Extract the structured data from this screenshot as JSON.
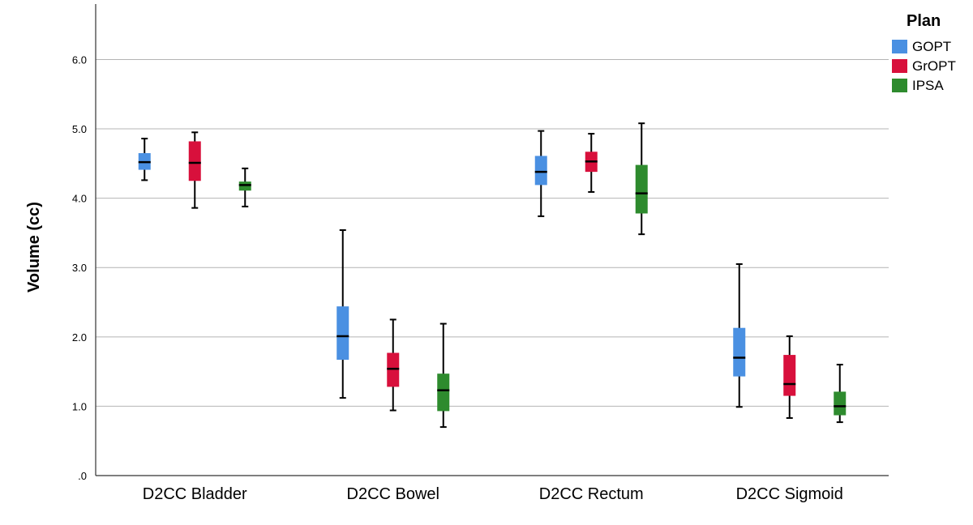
{
  "chart_data": {
    "type": "boxplot",
    "ylabel": "Volume (cc)",
    "xlabel": "",
    "ylim": [
      0,
      6.8
    ],
    "yticks": [
      {
        "value": 0,
        "label": ".0"
      },
      {
        "value": 1,
        "label": "1.0"
      },
      {
        "value": 2,
        "label": "2.0"
      },
      {
        "value": 3,
        "label": "3.0"
      },
      {
        "value": 4,
        "label": "4.0"
      },
      {
        "value": 5,
        "label": "5.0"
      },
      {
        "value": 6,
        "label": "6.0"
      }
    ],
    "grid": true,
    "legend": {
      "title": "Plan",
      "position": "top-right"
    },
    "categories": [
      "D2CC Bladder",
      "D2CC Bowel",
      "D2CC Rectum",
      "D2CC Sigmoid"
    ],
    "series": [
      {
        "name": "GOPT",
        "color": "#4a90e2",
        "boxes": [
          {
            "min": 4.26,
            "q1": 4.41,
            "median": 4.52,
            "q3": 4.65,
            "max": 4.86
          },
          {
            "min": 1.12,
            "q1": 1.67,
            "median": 2.01,
            "q3": 2.44,
            "max": 3.54
          },
          {
            "min": 3.74,
            "q1": 4.19,
            "median": 4.38,
            "q3": 4.61,
            "max": 4.97
          },
          {
            "min": 0.99,
            "q1": 1.43,
            "median": 1.7,
            "q3": 2.13,
            "max": 3.05
          }
        ]
      },
      {
        "name": "GrOPT",
        "color": "#d8103c",
        "boxes": [
          {
            "min": 3.86,
            "q1": 4.25,
            "median": 4.51,
            "q3": 4.82,
            "max": 4.95
          },
          {
            "min": 0.94,
            "q1": 1.28,
            "median": 1.54,
            "q3": 1.77,
            "max": 2.25
          },
          {
            "min": 4.09,
            "q1": 4.38,
            "median": 4.53,
            "q3": 4.67,
            "max": 4.93
          },
          {
            "min": 0.83,
            "q1": 1.15,
            "median": 1.32,
            "q3": 1.74,
            "max": 2.01
          }
        ]
      },
      {
        "name": "IPSA",
        "color": "#2e8b2e",
        "boxes": [
          {
            "min": 3.88,
            "q1": 4.11,
            "median": 4.19,
            "q3": 4.24,
            "max": 4.43
          },
          {
            "min": 0.7,
            "q1": 0.93,
            "median": 1.23,
            "q3": 1.47,
            "max": 2.19
          },
          {
            "min": 3.48,
            "q1": 3.78,
            "median": 4.07,
            "q3": 4.48,
            "max": 5.08
          },
          {
            "min": 0.77,
            "q1": 0.87,
            "median": 1.0,
            "q3": 1.21,
            "max": 1.6
          }
        ]
      }
    ]
  }
}
